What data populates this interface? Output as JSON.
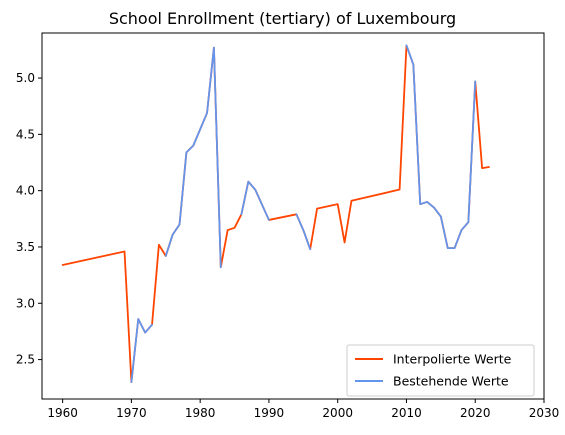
{
  "chart_data": {
    "type": "line",
    "title": "School Enrollment (tertiary) of Luxembourg",
    "xlabel": "",
    "ylabel": "",
    "xlim": [
      1957,
      2030
    ],
    "ylim": [
      2.15,
      5.4
    ],
    "x_ticks": [
      "1960",
      "1970",
      "1980",
      "1990",
      "2000",
      "2010",
      "2020",
      "2030"
    ],
    "y_ticks": [
      "2.5",
      "3.0",
      "3.5",
      "4.0",
      "4.5",
      "5.0"
    ],
    "grid": false,
    "legend_position": "bottom-right",
    "series": [
      {
        "name": "Interpolierte Werte",
        "color": "#ff4500",
        "points": [
          [
            1960,
            3.34
          ],
          [
            1969,
            3.46
          ],
          [
            1970,
            2.3
          ],
          [
            1971,
            2.86
          ],
          [
            1972,
            2.74
          ],
          [
            1973,
            2.81
          ],
          [
            1974,
            3.52
          ],
          [
            1975,
            3.42
          ],
          [
            1976,
            3.61
          ],
          [
            1977,
            3.7
          ],
          [
            1978,
            4.34
          ],
          [
            1979,
            4.4
          ],
          [
            1981,
            4.69
          ],
          [
            1982,
            5.27
          ],
          [
            1983,
            3.32
          ],
          [
            1984,
            3.65
          ],
          [
            1985,
            3.67
          ],
          [
            1986,
            3.79
          ],
          [
            1987,
            4.08
          ],
          [
            1988,
            4.01
          ],
          [
            1990,
            3.74
          ],
          [
            1994,
            3.79
          ],
          [
            1995,
            3.65
          ],
          [
            1996,
            3.48
          ],
          [
            1997,
            3.84
          ],
          [
            2000,
            3.88
          ],
          [
            2001,
            3.54
          ],
          [
            2002,
            3.91
          ],
          [
            2009,
            4.01
          ],
          [
            2010,
            5.29
          ],
          [
            2011,
            5.12
          ],
          [
            2012,
            3.88
          ],
          [
            2013,
            3.9
          ],
          [
            2014,
            3.85
          ],
          [
            2015,
            3.77
          ],
          [
            2016,
            3.49
          ],
          [
            2017,
            3.49
          ],
          [
            2018,
            3.65
          ],
          [
            2019,
            3.72
          ],
          [
            2020,
            4.97
          ],
          [
            2021,
            4.2
          ],
          [
            2022,
            4.21
          ]
        ]
      },
      {
        "name": "Bestehende Werte",
        "color": "#6495ed",
        "segments": [
          [
            [
              1970,
              2.3
            ],
            [
              1971,
              2.86
            ],
            [
              1972,
              2.74
            ],
            [
              1973,
              2.81
            ]
          ],
          [
            [
              1975,
              3.42
            ],
            [
              1976,
              3.61
            ],
            [
              1977,
              3.7
            ],
            [
              1978,
              4.34
            ],
            [
              1979,
              4.4
            ],
            [
              1981,
              4.69
            ],
            [
              1982,
              5.27
            ],
            [
              1983,
              3.32
            ]
          ],
          [
            [
              1986,
              3.79
            ],
            [
              1987,
              4.08
            ],
            [
              1988,
              4.01
            ],
            [
              1990,
              3.74
            ]
          ],
          [
            [
              1994,
              3.79
            ],
            [
              1995,
              3.65
            ],
            [
              1996,
              3.48
            ]
          ],
          [
            [
              2010,
              5.29
            ],
            [
              2011,
              5.12
            ],
            [
              2012,
              3.88
            ],
            [
              2013,
              3.9
            ],
            [
              2014,
              3.85
            ],
            [
              2015,
              3.77
            ],
            [
              2016,
              3.49
            ],
            [
              2017,
              3.49
            ],
            [
              2018,
              3.65
            ],
            [
              2019,
              3.72
            ],
            [
              2020,
              4.97
            ]
          ]
        ]
      }
    ]
  }
}
